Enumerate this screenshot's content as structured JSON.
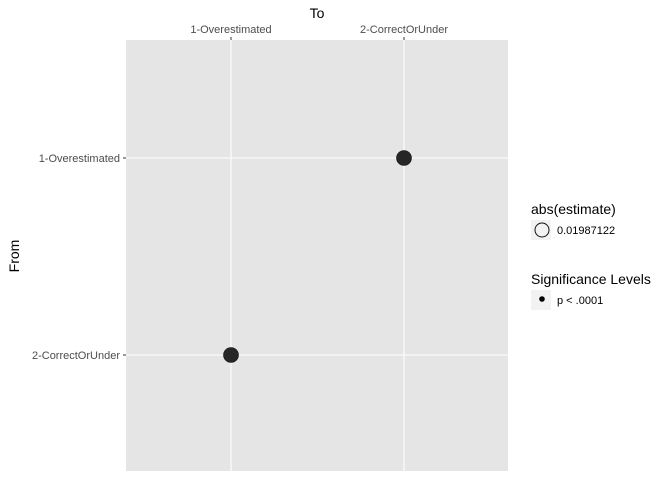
{
  "chart_data": {
    "type": "scatter",
    "xlabel": "To",
    "ylabel": "From",
    "x_categories": [
      "1-Overestimated",
      "2-CorrectOrUnder"
    ],
    "y_categories": [
      "1-Overestimated",
      "2-CorrectOrUnder"
    ],
    "x_axis_position": "top",
    "grid": true,
    "points": [
      {
        "from": "1-Overestimated",
        "to": "2-CorrectOrUnder",
        "abs_estimate": 0.01987122,
        "significance": "p < .0001"
      },
      {
        "from": "2-CorrectOrUnder",
        "to": "1-Overestimated",
        "abs_estimate": 0.01987122,
        "significance": "p < .0001"
      }
    ],
    "legends": [
      {
        "title": "abs(estimate)",
        "key": "open-circle",
        "labels": [
          "0.01987122"
        ]
      },
      {
        "title": "Significance Levels",
        "key": "small-dot",
        "labels": [
          "p < .0001"
        ]
      }
    ],
    "legend_position": "right",
    "colors": {
      "panel": "#e5e5e5",
      "grid": "#ffffff",
      "point": "#262626",
      "tick": "#333333"
    }
  }
}
